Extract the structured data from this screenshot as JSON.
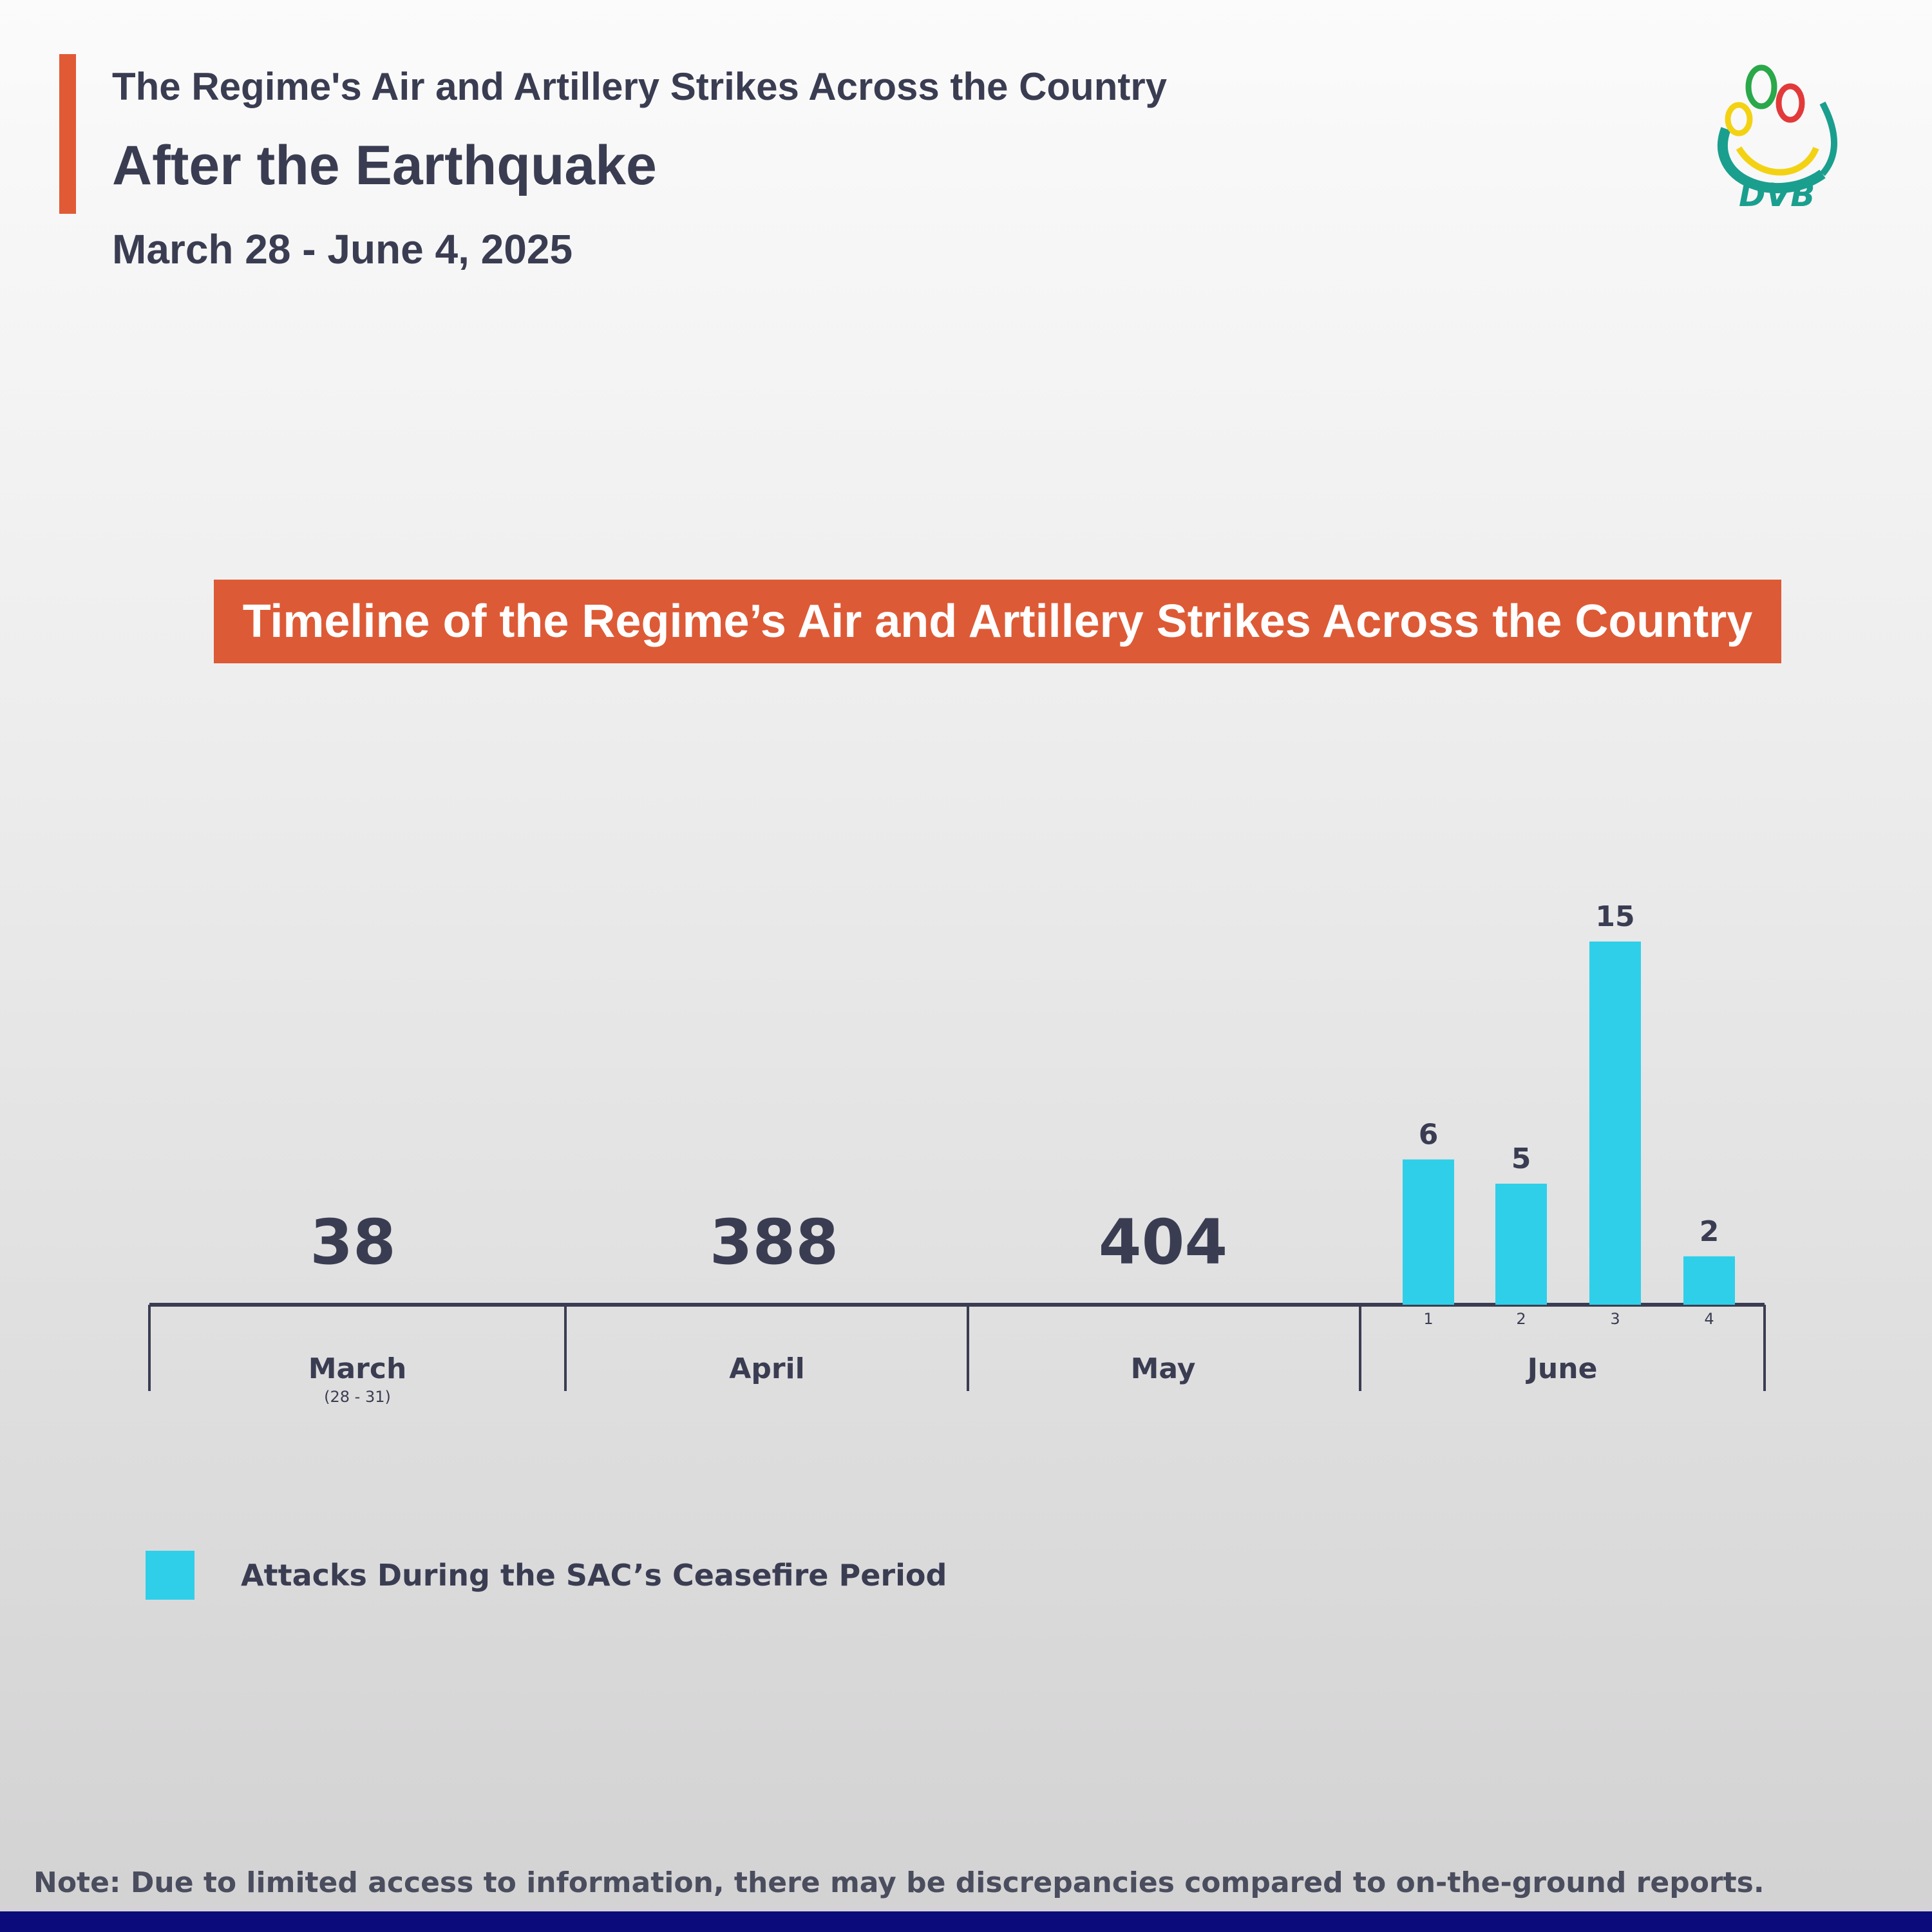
{
  "header": {
    "kicker": "The Regime's Air and Artillery Strikes Across the Country",
    "headline": "After the Earthquake",
    "dates": "March 28 - June 4, 2025"
  },
  "logo": {
    "text": "DVB"
  },
  "colors": {
    "accent": "#e05a35",
    "bar": "#2fcfe9",
    "text": "#3a3d52",
    "footer": "#0b0b7c"
  },
  "chart_data": {
    "type": "bar",
    "title": "Timeline of the Regime’s Air and Artillery Strikes Across the Country",
    "months": [
      {
        "label": "March",
        "sublabel": "(28 - 31)",
        "total": "38"
      },
      {
        "label": "April",
        "sublabel": "",
        "total": "388"
      },
      {
        "label": "May",
        "sublabel": "",
        "total": "404"
      },
      {
        "label": "June",
        "sublabel": "",
        "total": ""
      }
    ],
    "june_daily": {
      "categories": [
        "1",
        "2",
        "3",
        "4"
      ],
      "values": [
        6,
        5,
        15,
        2
      ]
    },
    "legend": [
      {
        "label": "Attacks During the SAC’s Ceasefire Period",
        "color": "#2fcfe9"
      }
    ],
    "grid": false
  },
  "note": "Note: Due to limited access to information, there may be discrepancies compared to on-the-ground reports."
}
